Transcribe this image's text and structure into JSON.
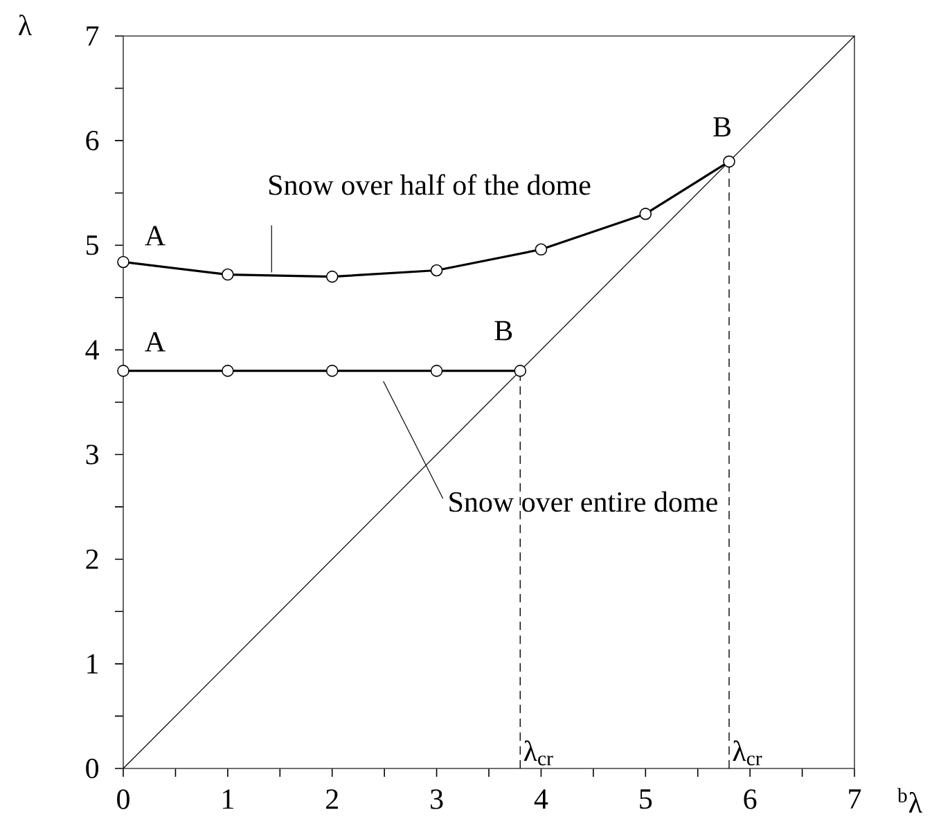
{
  "chart_data": {
    "type": "line",
    "xlabel": "$^{b}$λ",
    "ylabel": "λ",
    "xlim": [
      0,
      7
    ],
    "ylim": [
      0,
      7
    ],
    "xticks": [
      0,
      1,
      2,
      3,
      4,
      5,
      6,
      7
    ],
    "yticks": [
      0,
      1,
      2,
      3,
      4,
      5,
      6,
      7
    ],
    "marker": "circle",
    "grid": false,
    "legend": false,
    "series": [
      {
        "name": "Snow over half of the dome",
        "color": "#000000",
        "x": [
          0,
          1,
          2,
          3,
          4,
          5,
          5.8
        ],
        "values": [
          4.84,
          4.72,
          4.7,
          4.76,
          4.96,
          5.3,
          5.8
        ]
      },
      {
        "name": "Snow over entire dome",
        "color": "#000000",
        "x": [
          0,
          1,
          2,
          3,
          3.8
        ],
        "values": [
          3.8,
          3.8,
          3.8,
          3.8,
          3.8
        ]
      },
      {
        "type": "line",
        "marker": "none",
        "color": "#000000",
        "x": [
          0,
          7
        ],
        "values": [
          0,
          7
        ]
      }
    ],
    "ref_lines": [
      {
        "axis": "x",
        "value": 3.8,
        "label": "λ$_{cr}$",
        "line_style": "dashed"
      },
      {
        "axis": "x",
        "value": 5.8,
        "label": "λ$_{cr}$",
        "line_style": "dashed"
      }
    ],
    "annotations": [
      {
        "text": "A",
        "x": 0,
        "y": 4.84
      },
      {
        "text": "B",
        "x": 5.8,
        "y": 5.8
      },
      {
        "text": "A",
        "x": 0,
        "y": 3.8
      },
      {
        "text": "B",
        "x": 3.8,
        "y": 3.8
      }
    ]
  }
}
